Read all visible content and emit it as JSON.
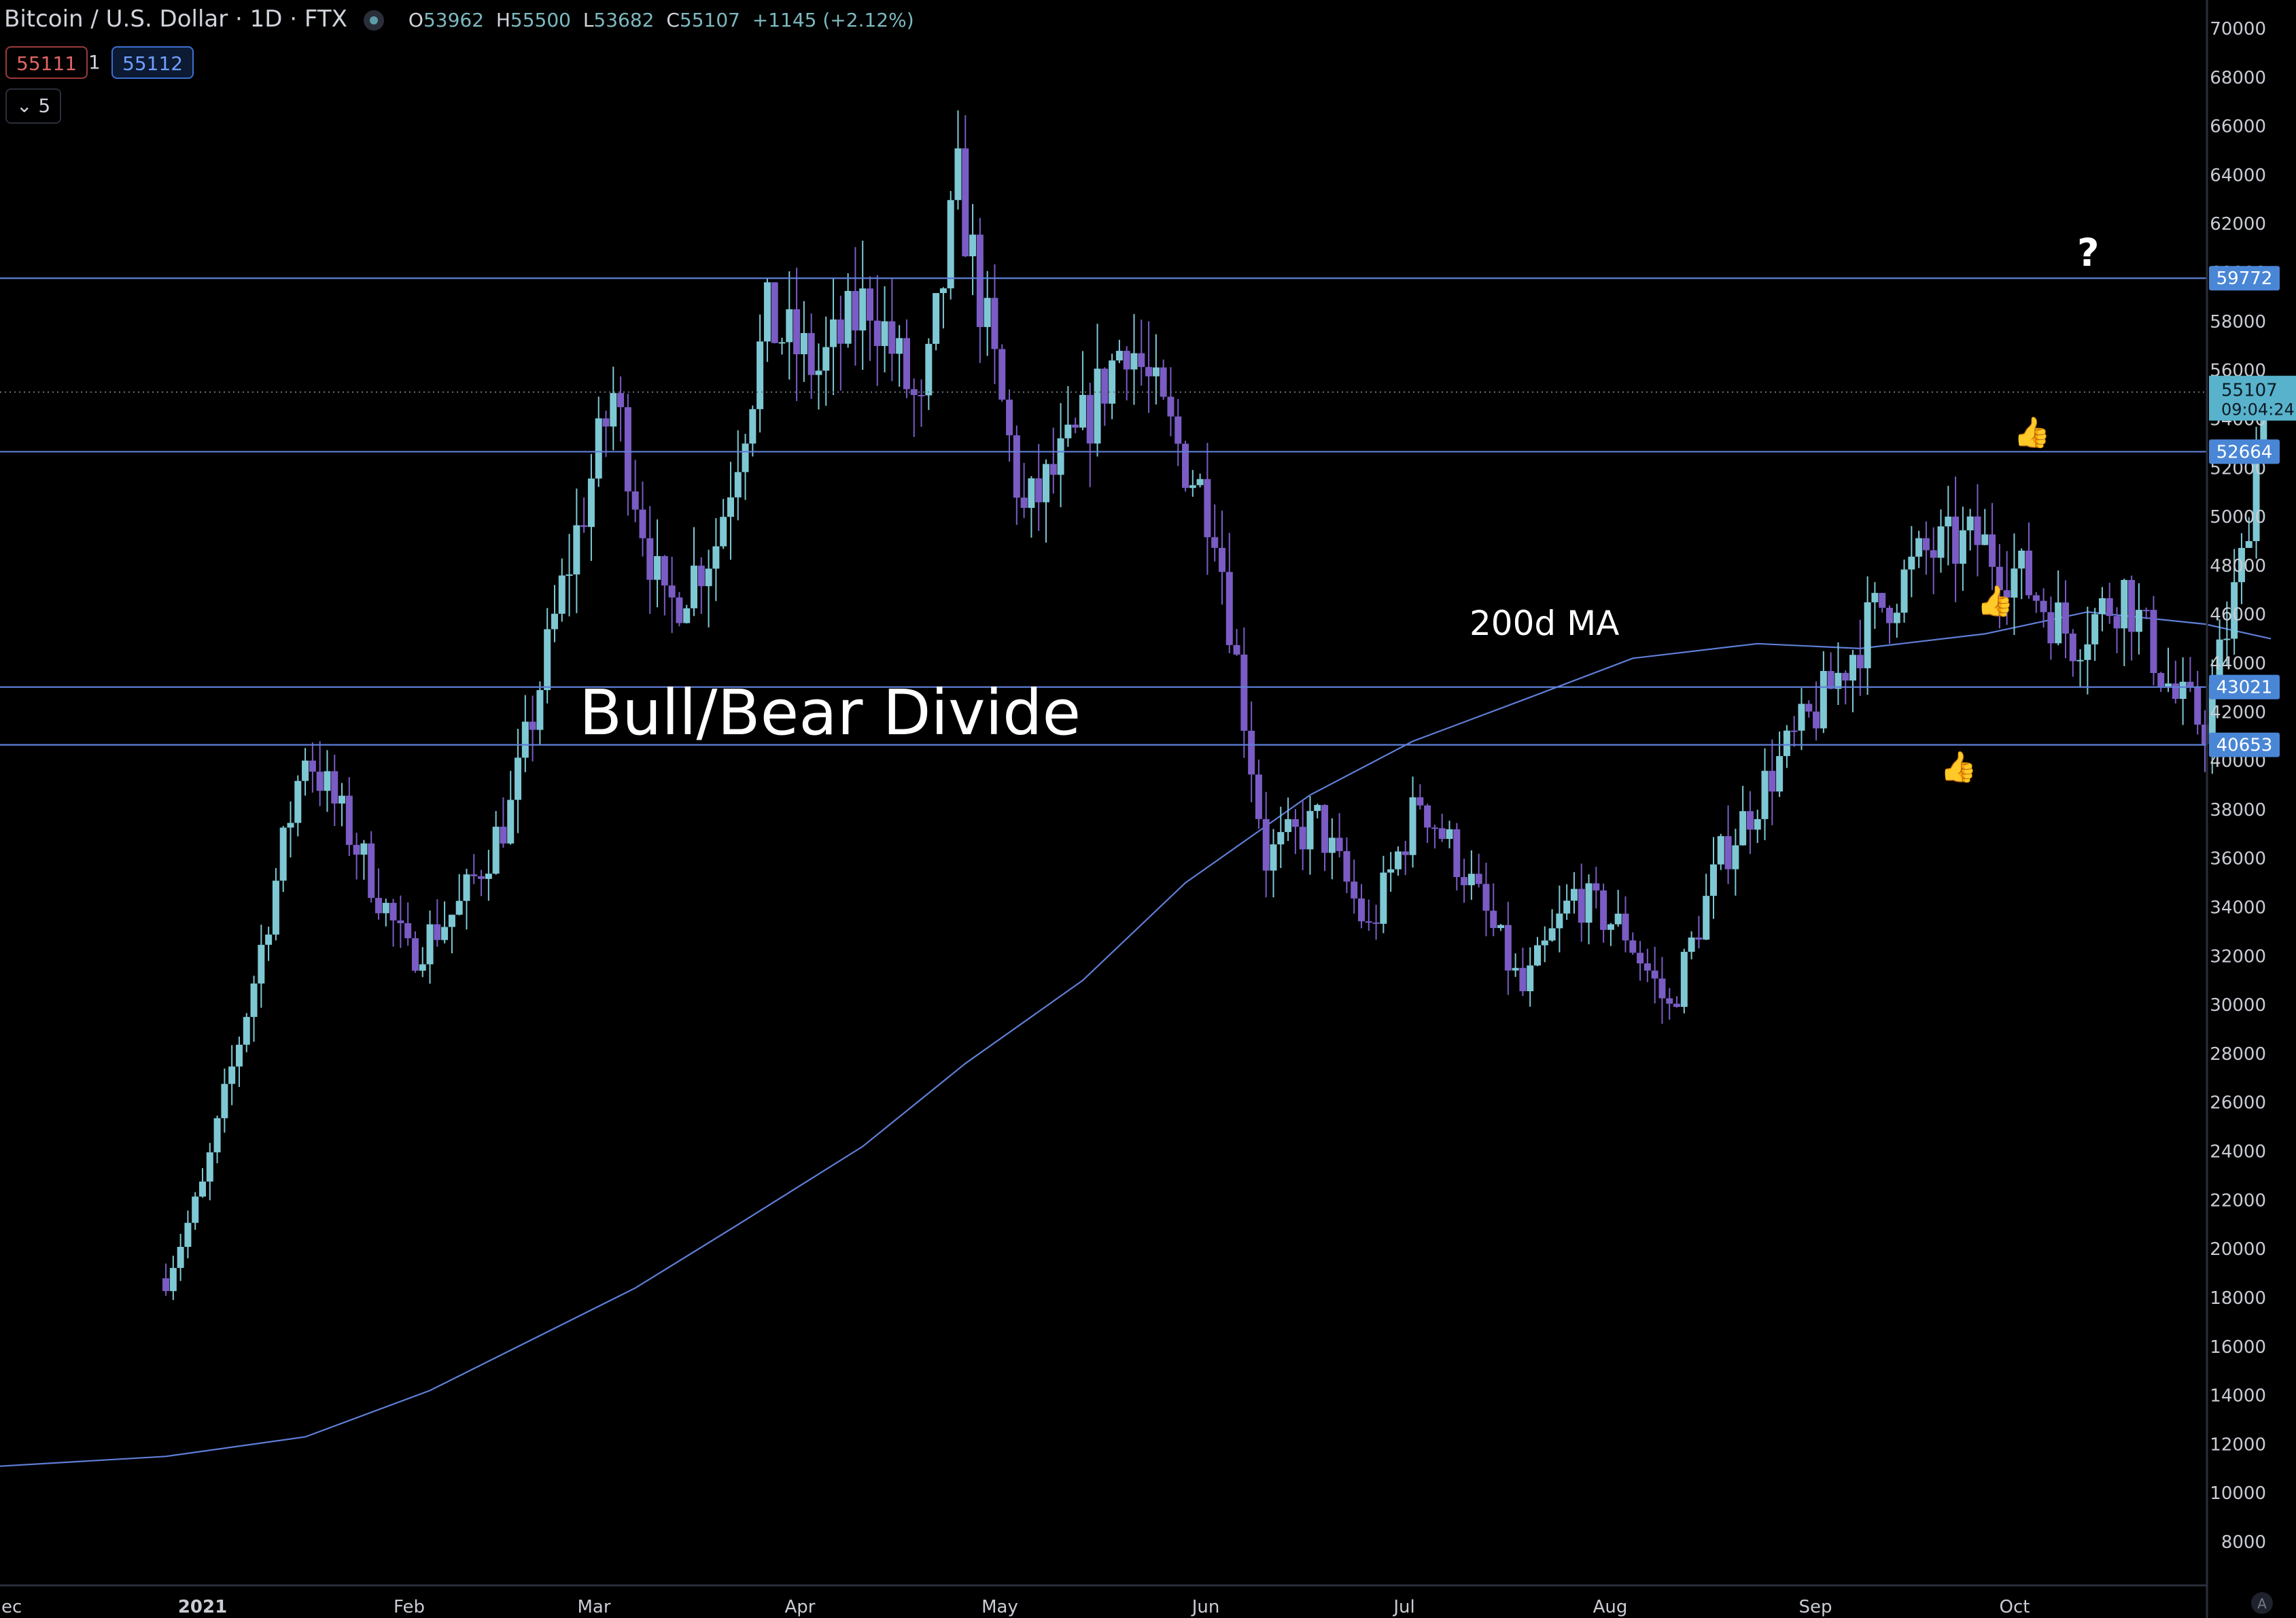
{
  "header": {
    "symbol": "Bitcoin / U.S. Dollar · 1D · FTX",
    "o_label": "O",
    "o_value": "53962",
    "h_label": "H",
    "h_value": "55500",
    "l_label": "L",
    "l_value": "53682",
    "c_label": "C",
    "c_value": "55107",
    "change": "+1145 (+2.12%)"
  },
  "trade": {
    "sell": "55111",
    "qty": "1",
    "buy": "55112"
  },
  "indicators_toggle": "5",
  "annotations": {
    "divide": "Bull/Bear Divide",
    "ma": "200d MA",
    "question": "?",
    "thumbs_icon": "thumbs-up-icon"
  },
  "colors": {
    "background": "#000000",
    "up_candle": "#7ec8d4",
    "down_candle": "#7a5cc4",
    "level_line": "#5f7fd8",
    "ma_line": "#5f7fd8",
    "price_tag": "#4a86d6",
    "last_tag": "#58b2cc"
  },
  "chart_data": {
    "type": "candlestick",
    "title": "Bitcoin / U.S. Dollar · 1D · FTX",
    "ylim": [
      6000,
      71000
    ],
    "y_ticks": [
      8000,
      10000,
      12000,
      14000,
      16000,
      18000,
      20000,
      22000,
      24000,
      26000,
      28000,
      30000,
      32000,
      34000,
      36000,
      38000,
      40000,
      42000,
      44000,
      46000,
      48000,
      50000,
      52000,
      54000,
      56000,
      58000,
      60000,
      62000,
      64000,
      66000,
      68000,
      70000
    ],
    "x_ticks": [
      "ec",
      "2021",
      "Feb",
      "Mar",
      "Apr",
      "May",
      "Jun",
      "Jul",
      "Aug",
      "Sep",
      "Oct"
    ],
    "grid": false,
    "last_price": "55107",
    "countdown": "09:04:24",
    "horizontal_levels": [
      "59772",
      "52664",
      "43021",
      "40653"
    ],
    "series": [
      {
        "key": "close",
        "x": [
          "2020-12-27",
          "2021-01-01",
          "2021-01-08",
          "2021-01-15",
          "2021-01-22",
          "2021-01-29",
          "2021-02-05",
          "2021-02-12",
          "2021-02-19",
          "2021-02-26",
          "2021-03-05",
          "2021-03-12",
          "2021-03-19",
          "2021-03-26",
          "2021-04-02",
          "2021-04-09",
          "2021-04-14",
          "2021-04-23",
          "2021-04-30",
          "2021-05-07",
          "2021-05-12",
          "2021-05-19",
          "2021-05-26",
          "2021-06-02",
          "2021-06-09",
          "2021-06-16",
          "2021-06-22",
          "2021-06-30",
          "2021-07-07",
          "2021-07-14",
          "2021-07-20",
          "2021-07-27",
          "2021-08-03",
          "2021-08-10",
          "2021-08-17",
          "2021-08-24",
          "2021-08-31",
          "2021-09-06",
          "2021-09-13",
          "2021-09-20",
          "2021-09-27",
          "2021-10-01",
          "2021-10-06",
          "2021-10-09"
        ],
        "values": [
          18800,
          22500,
          31000,
          40500,
          36500,
          32000,
          34000,
          38000,
          47000,
          55000,
          46000,
          49000,
          58000,
          56000,
          59000,
          54000,
          63500,
          50000,
          53000,
          57500,
          54000,
          50000,
          36000,
          37500,
          33000,
          38500,
          35500,
          30500,
          34500,
          33000,
          29800,
          36000,
          39500,
          42500,
          46000,
          48500,
          49000,
          47500,
          45000,
          47000,
          42500,
          41500,
          48000,
          55107
        ]
      },
      {
        "name": "200d MA",
        "x": [
          "2020-12-27",
          "2021-01-15",
          "2021-02-01",
          "2021-02-15",
          "2021-03-01",
          "2021-03-15",
          "2021-04-01",
          "2021-04-15",
          "2021-05-01",
          "2021-05-15",
          "2021-06-01",
          "2021-06-15",
          "2021-07-01",
          "2021-07-15",
          "2021-08-01",
          "2021-08-15",
          "2021-09-01",
          "2021-09-15",
          "2021-10-01",
          "2021-10-10"
        ],
        "values": [
          11500,
          12300,
          14200,
          16300,
          18400,
          21000,
          24200,
          27600,
          31000,
          35000,
          38600,
          40800,
          42600,
          44200,
          44800,
          44600,
          45200,
          46100,
          45600,
          45000
        ]
      }
    ]
  }
}
